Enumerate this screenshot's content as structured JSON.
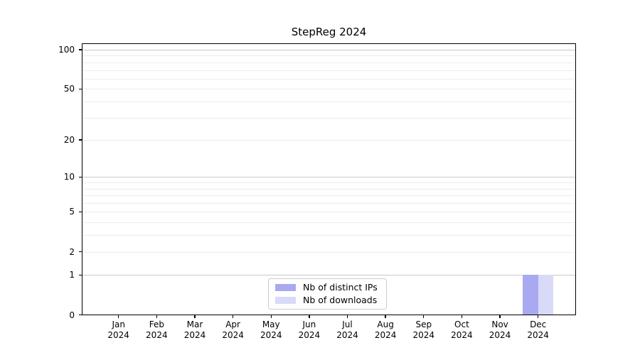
{
  "chart_data": {
    "type": "bar",
    "title": "StepReg 2024",
    "categories": [
      "Jan",
      "Feb",
      "Mar",
      "Apr",
      "May",
      "Jun",
      "Jul",
      "Aug",
      "Sep",
      "Oct",
      "Nov",
      "Dec"
    ],
    "x_year_label": "2024",
    "series": [
      {
        "name": "Nb of distinct IPs",
        "color": "#a9a9f1",
        "values": [
          0,
          0,
          0,
          0,
          0,
          0,
          0,
          0,
          0,
          0,
          0,
          1
        ]
      },
      {
        "name": "Nb of downloads",
        "color": "#d9d9f8",
        "values": [
          0,
          0,
          0,
          0,
          0,
          0,
          0,
          0,
          0,
          0,
          0,
          1
        ]
      }
    ],
    "yscale": "log10(1+x)",
    "y_tick_values": [
      0,
      1,
      2,
      5,
      10,
      20,
      50,
      100
    ],
    "y_major_gridlines": [
      1,
      10,
      100
    ],
    "y_minor_gridlines": [
      2,
      3,
      4,
      5,
      6,
      7,
      8,
      9,
      20,
      30,
      40,
      50,
      60,
      70,
      80,
      90
    ],
    "ylim": [
      0,
      113
    ],
    "xlabel": "",
    "ylabel": "",
    "grid": "on",
    "legend_position": "bottom-center"
  }
}
